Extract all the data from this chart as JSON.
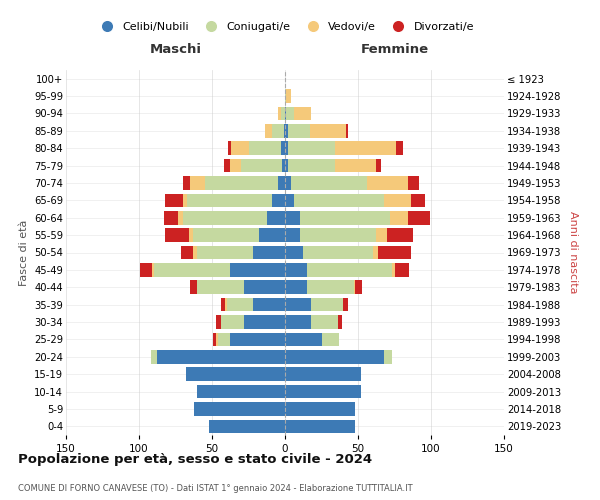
{
  "age_groups": [
    "100+",
    "95-99",
    "90-94",
    "85-89",
    "80-84",
    "75-79",
    "70-74",
    "65-69",
    "60-64",
    "55-59",
    "50-54",
    "45-49",
    "40-44",
    "35-39",
    "30-34",
    "25-29",
    "20-24",
    "15-19",
    "10-14",
    "5-9",
    "0-4"
  ],
  "birth_years": [
    "≤ 1923",
    "1924-1928",
    "1929-1933",
    "1934-1938",
    "1939-1943",
    "1944-1948",
    "1949-1953",
    "1954-1958",
    "1959-1963",
    "1964-1968",
    "1969-1973",
    "1974-1978",
    "1979-1983",
    "1984-1988",
    "1989-1993",
    "1994-1998",
    "1999-2003",
    "2004-2008",
    "2009-2013",
    "2014-2018",
    "2019-2023"
  ],
  "maschi": {
    "celibi": [
      0,
      0,
      0,
      1,
      3,
      2,
      5,
      9,
      12,
      18,
      22,
      38,
      28,
      22,
      28,
      38,
      88,
      68,
      60,
      62,
      52
    ],
    "coniugati": [
      0,
      0,
      3,
      8,
      22,
      28,
      50,
      58,
      58,
      45,
      38,
      52,
      32,
      18,
      16,
      8,
      4,
      0,
      0,
      0,
      0
    ],
    "vedovi": [
      0,
      0,
      2,
      5,
      12,
      8,
      10,
      3,
      3,
      3,
      3,
      1,
      0,
      1,
      0,
      1,
      0,
      0,
      0,
      0,
      0
    ],
    "divorziati": [
      0,
      0,
      0,
      0,
      2,
      4,
      5,
      12,
      10,
      16,
      8,
      8,
      5,
      3,
      3,
      2,
      0,
      0,
      0,
      0,
      0
    ]
  },
  "femmine": {
    "nubili": [
      0,
      0,
      1,
      2,
      2,
      2,
      4,
      6,
      10,
      10,
      12,
      15,
      15,
      18,
      18,
      25,
      68,
      52,
      52,
      48,
      48
    ],
    "coniugate": [
      0,
      1,
      5,
      15,
      32,
      32,
      52,
      62,
      62,
      52,
      48,
      58,
      32,
      22,
      18,
      12,
      5,
      0,
      0,
      0,
      0
    ],
    "vedove": [
      0,
      3,
      12,
      25,
      42,
      28,
      28,
      18,
      12,
      8,
      4,
      2,
      1,
      0,
      0,
      0,
      0,
      0,
      0,
      0,
      0
    ],
    "divorziate": [
      0,
      0,
      0,
      1,
      5,
      4,
      8,
      10,
      15,
      18,
      22,
      10,
      5,
      3,
      3,
      0,
      0,
      0,
      0,
      0,
      0
    ]
  },
  "color_celibi": "#3d7ab5",
  "color_coniugati": "#c5d9a0",
  "color_vedovi": "#f5c97a",
  "color_divorziati": "#cc2222",
  "title": "Popolazione per età, sesso e stato civile - 2024",
  "subtitle": "COMUNE DI FORNO CANAVESE (TO) - Dati ISTAT 1° gennaio 2024 - Elaborazione TUTTITALIA.IT",
  "xlabel_left": "Maschi",
  "xlabel_right": "Femmine",
  "ylabel_left": "Fasce di età",
  "ylabel_right": "Anni di nascita",
  "xlim": 150,
  "bg_color": "#ffffff",
  "grid_color": "#cccccc",
  "xticks": [
    -150,
    -100,
    -50,
    0,
    50,
    100,
    150
  ],
  "xtick_labels": [
    "150",
    "100",
    "50",
    "0",
    "50",
    "100",
    "150"
  ]
}
